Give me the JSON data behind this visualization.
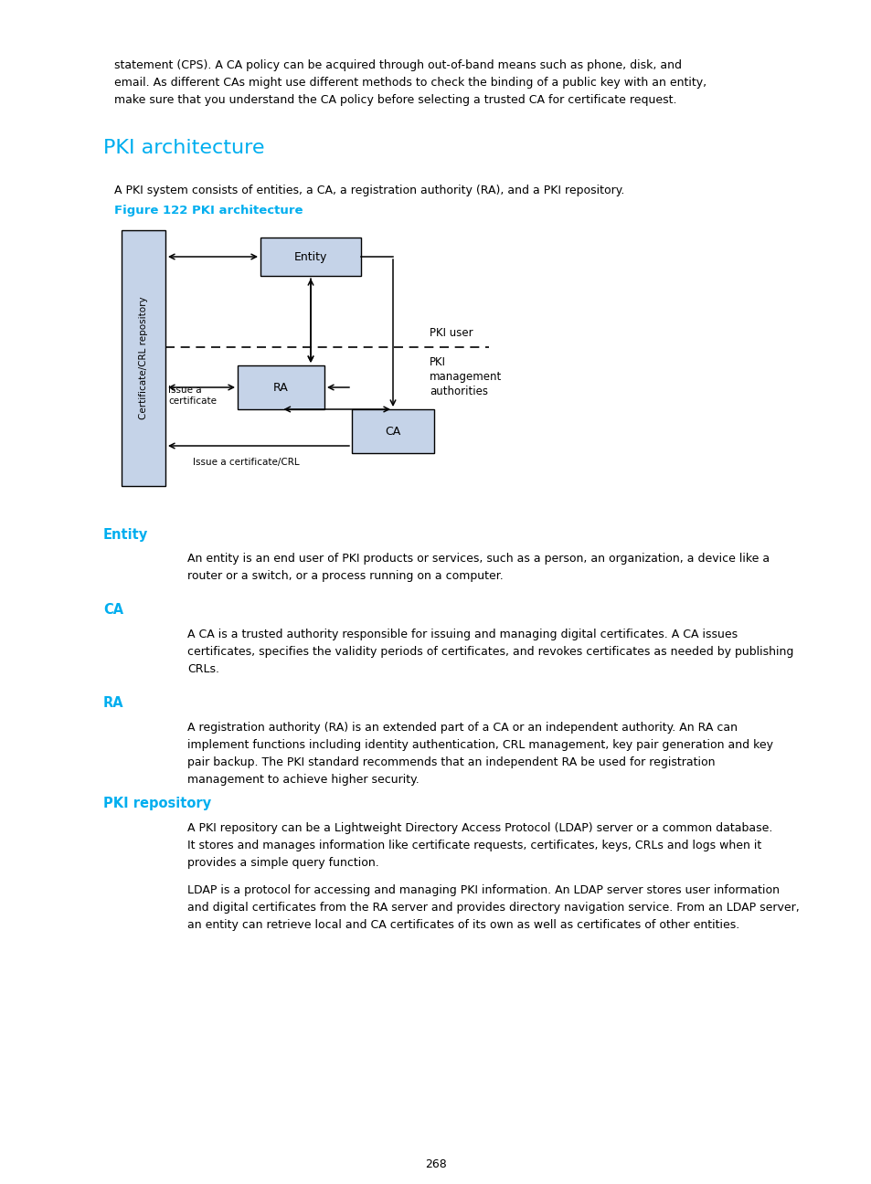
{
  "page_bg": "#ffffff",
  "cyan_color": "#00AEEF",
  "text_color": "#000000",
  "box_fill": "#C5D3E8",
  "box_edge": "#000000",
  "para_text_1": "statement (CPS). A CA policy can be acquired through out-of-band means such as phone, disk, and\nemail. As different CAs might use different methods to check the binding of a public key with an entity,\nmake sure that you understand the CA policy before selecting a trusted CA for certificate request.",
  "section_title_1": "PKI architecture",
  "intro_text": "A PKI system consists of entities, a CA, a registration authority (RA), and a PKI repository.",
  "fig_caption": "Figure 122 PKI architecture",
  "section_entity": "Entity",
  "entity_text": "An entity is an end user of PKI products or services, such as a person, an organization, a device like a\nrouter or a switch, or a process running on a computer.",
  "section_ca": "CA",
  "ca_text": "A CA is a trusted authority responsible for issuing and managing digital certificates. A CA issues\ncertificates, specifies the validity periods of certificates, and revokes certificates as needed by publishing\nCRLs.",
  "section_ra": "RA",
  "ra_text": "A registration authority (RA) is an extended part of a CA or an independent authority. An RA can\nimplement functions including identity authentication, CRL management, key pair generation and key\npair backup. The PKI standard recommends that an independent RA be used for registration\nmanagement to achieve higher security.",
  "section_pki_repo": "PKI repository",
  "pki_repo_text_1": "A PKI repository can be a Lightweight Directory Access Protocol (LDAP) server or a common database.\nIt stores and manages information like certificate requests, certificates, keys, CRLs and logs when it\nprovides a simple query function.",
  "pki_repo_text_2": "LDAP is a protocol for accessing and managing PKI information. An LDAP server stores user information\nand digital certificates from the RA server and provides directory navigation service. From an LDAP server,\nan entity can retrieve local and CA certificates of its own as well as certificates of other entities.",
  "page_number": "268"
}
